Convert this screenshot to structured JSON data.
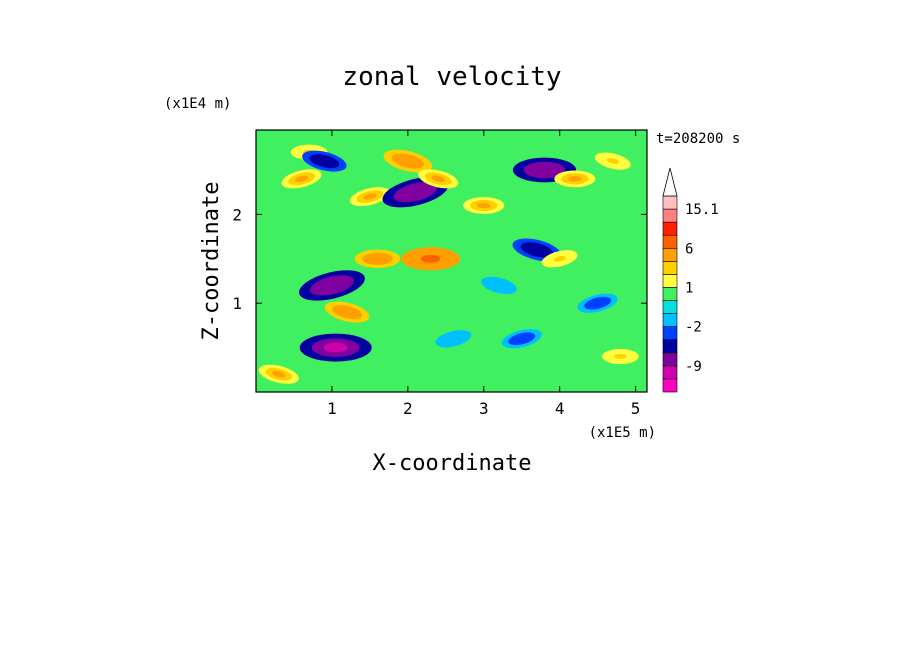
{
  "chart_data": {
    "type": "heatmap",
    "title": "zonal velocity",
    "xlabel": "X-coordinate",
    "ylabel": "Z-coordinate",
    "x_unit": "(x1E5 m)",
    "y_unit": "(x1E4 m)",
    "time_label": "t=208200 s",
    "xlim": [
      0,
      5.15
    ],
    "ylim": [
      0,
      2.95
    ],
    "x_ticks": [
      1,
      2,
      3,
      4,
      5
    ],
    "y_ticks": [
      1,
      2
    ],
    "colorbar": {
      "levels": [
        -15,
        -12,
        -9,
        -6,
        -3,
        -2,
        -1,
        0,
        1,
        2,
        3,
        6,
        9,
        12,
        15.1
      ],
      "tick_labels": [
        "15.1",
        "6",
        "1",
        "-2",
        "-9"
      ],
      "tick_values": [
        15.1,
        6,
        1,
        -2,
        -9
      ],
      "colors": [
        "#ff00c0",
        "#d000b0",
        "#8000a0",
        "#0000a0",
        "#0040ff",
        "#00c0ff",
        "#00e0e0",
        "#40f060",
        "#ffff40",
        "#ffd000",
        "#ffa000",
        "#ff6000",
        "#ff2000",
        "#ff8080",
        "#ffc0c0"
      ]
    },
    "features": [
      {
        "x": 0.6,
        "z": 2.4,
        "v": 3
      },
      {
        "x": 0.7,
        "z": 2.7,
        "v": 2
      },
      {
        "x": 0.9,
        "z": 2.6,
        "v": -4
      },
      {
        "x": 1.0,
        "z": 1.2,
        "v": -9
      },
      {
        "x": 1.05,
        "z": 0.5,
        "v": -10
      },
      {
        "x": 1.2,
        "z": 0.9,
        "v": 4
      },
      {
        "x": 1.5,
        "z": 2.2,
        "v": 3
      },
      {
        "x": 1.6,
        "z": 1.5,
        "v": 4
      },
      {
        "x": 2.0,
        "z": 2.6,
        "v": 5
      },
      {
        "x": 2.1,
        "z": 2.25,
        "v": -9
      },
      {
        "x": 2.3,
        "z": 1.5,
        "v": 7
      },
      {
        "x": 2.4,
        "z": 2.4,
        "v": 3
      },
      {
        "x": 2.6,
        "z": 0.6,
        "v": -2
      },
      {
        "x": 3.0,
        "z": 2.1,
        "v": 3
      },
      {
        "x": 3.2,
        "z": 1.2,
        "v": -2
      },
      {
        "x": 3.5,
        "z": 0.6,
        "v": -3
      },
      {
        "x": 3.8,
        "z": 2.5,
        "v": -8
      },
      {
        "x": 3.7,
        "z": 1.6,
        "v": -5
      },
      {
        "x": 4.0,
        "z": 1.5,
        "v": 2
      },
      {
        "x": 4.2,
        "z": 2.4,
        "v": 3
      },
      {
        "x": 4.7,
        "z": 2.6,
        "v": 2
      },
      {
        "x": 4.5,
        "z": 1.0,
        "v": -3
      },
      {
        "x": 4.8,
        "z": 0.4,
        "v": 2
      },
      {
        "x": 0.3,
        "z": 0.2,
        "v": 3
      }
    ]
  }
}
